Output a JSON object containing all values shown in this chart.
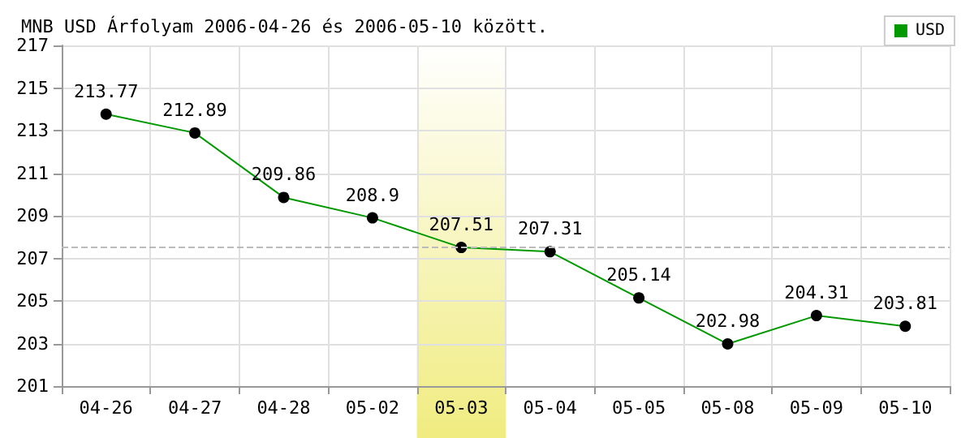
{
  "chart_data": {
    "type": "line",
    "title": "MNB USD Árfolyam 2006-04-26 és 2006-05-10 között.",
    "categories": [
      "04-26",
      "04-27",
      "04-28",
      "05-02",
      "05-03",
      "05-04",
      "05-05",
      "05-08",
      "05-09",
      "05-10"
    ],
    "series": [
      {
        "name": "USD",
        "color": "#009900",
        "values": [
          213.77,
          212.89,
          209.86,
          208.9,
          207.51,
          207.31,
          205.14,
          202.98,
          204.31,
          203.81
        ]
      }
    ],
    "ylim": [
      201,
      217
    ],
    "yticks": [
      201,
      203,
      205,
      207,
      209,
      211,
      213,
      215,
      217
    ],
    "ref_lines": [
      {
        "axis": "y",
        "value": 207.51,
        "color": "#bbbbbb",
        "line_style": "dashed"
      }
    ],
    "bands": [
      {
        "axis": "x",
        "from": "05-03",
        "to": "05-03",
        "color": "#f0ec80"
      }
    ],
    "grid": true,
    "legend": "top right",
    "marker": "circle",
    "line_style": "solid",
    "data_labels": true
  }
}
